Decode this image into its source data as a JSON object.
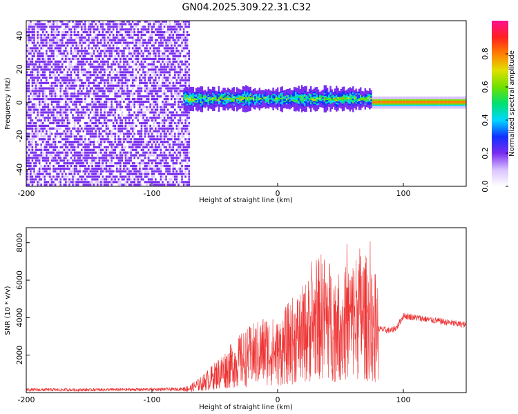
{
  "title": "GN04.2025.309.22.31.C32",
  "chart_data": [
    {
      "type": "heatmap",
      "title": "",
      "xlabel": "Height of straight line (km)",
      "ylabel": "Frequency (Hz)",
      "xlim": [
        -200,
        150
      ],
      "ylim": [
        -50,
        49
      ],
      "xticks": [
        -200,
        -100,
        0,
        100
      ],
      "xtick_labels": [
        "-200",
        "-100",
        "0",
        "100"
      ],
      "yticks": [
        -40,
        -20,
        0,
        20,
        40
      ],
      "ytick_labels": [
        "-40",
        "-20",
        "0",
        "20",
        "40"
      ],
      "colorbar": {
        "label": "Normalized spectral amplitude",
        "range": [
          0,
          1
        ],
        "ticks": [
          0.0,
          0.2,
          0.4,
          0.6,
          0.8
        ],
        "tick_labels": [
          "0.0",
          "0.2",
          "0.4",
          "0.6",
          "0.8"
        ],
        "colormap": [
          "#ffffff",
          "#d9c2ff",
          "#7a2cf0",
          "#1030ff",
          "#00d8ff",
          "#00e070",
          "#70e000",
          "#e0e000",
          "#ff8000",
          "#ff2020",
          "#ff1090"
        ]
      },
      "regions": [
        {
          "name": "noise",
          "x_range": [
            -200,
            -70
          ],
          "freq_range": [
            -50,
            49
          ],
          "amplitude": 0.1
        },
        {
          "name": "signal",
          "x_range": [
            -75,
            75
          ],
          "center_freq": 2,
          "freq_halfwidth": 6,
          "peak_amplitude": 0.8
        },
        {
          "name": "tail",
          "x_range": [
            75,
            150
          ],
          "center_freq": 0,
          "freq_halfwidth": 2,
          "peak_amplitude": 0.9
        }
      ]
    },
    {
      "type": "line",
      "title": "",
      "xlabel": "Height of straight line (km)",
      "ylabel": "SNR (10 * v/v)",
      "xlim": [
        -200,
        150
      ],
      "ylim": [
        0,
        8800
      ],
      "xticks": [
        -200,
        -100,
        0,
        100
      ],
      "xtick_labels": [
        "-200",
        "-100",
        "0",
        "100"
      ],
      "yticks": [
        2000,
        4000,
        6000,
        8000
      ],
      "ytick_labels": [
        "2000",
        "4000",
        "6000",
        "8000"
      ],
      "color": "#ee3333",
      "series": [
        {
          "name": "SNR",
          "x": [
            -200,
            -150,
            -100,
            -80,
            -70,
            -60,
            -50,
            -40,
            -30,
            -20,
            -15,
            -10,
            -5,
            0,
            5,
            10,
            20,
            30,
            35,
            40,
            50,
            60,
            65,
            70,
            80,
            90,
            95,
            100,
            110,
            120,
            130,
            140,
            150
          ],
          "values": [
            150,
            150,
            170,
            180,
            220,
            500,
            900,
            1300,
            1700,
            2000,
            2100,
            2300,
            2200,
            2100,
            2400,
            2700,
            3100,
            3700,
            4100,
            3900,
            3500,
            3900,
            4300,
            4000,
            3400,
            3300,
            3500,
            4100,
            4000,
            3900,
            3800,
            3700,
            3600
          ],
          "max_spike": 8600
        }
      ]
    }
  ]
}
